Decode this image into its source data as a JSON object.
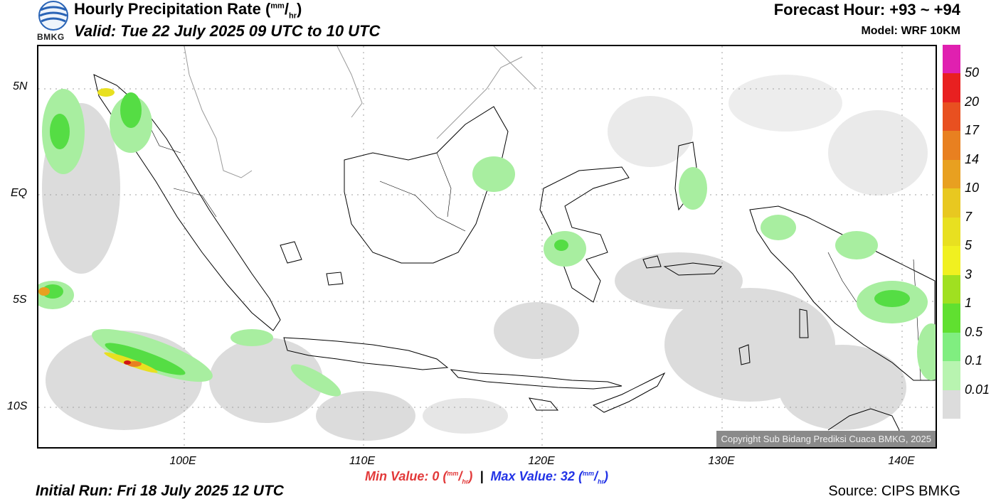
{
  "header": {
    "logo_text": "BMKG",
    "title_main": "Hourly Precipitation Rate (",
    "title_unit_num": "mm",
    "title_unit_sep": "/",
    "title_unit_den": "hr",
    "title_close": ")",
    "valid": "Valid: Tue 22 July 2025 09 UTC to 10 UTC",
    "forecast_hour": "Forecast Hour: +93 ~ +94",
    "model": "Model: WRF 10KM"
  },
  "map": {
    "copyright": "Copyright Sub Bidang Prediksi Cuaca BMKG, 2025",
    "lat_labels": [
      "5N",
      "EQ",
      "5S",
      "10S"
    ],
    "lon_labels": [
      "100E",
      "110E",
      "120E",
      "130E",
      "140E"
    ],
    "colors": {
      "land_outline": "#000000",
      "grid": "#a0a0a0",
      "light_rain": "#dcdcdc",
      "green_light": "#a8eea0",
      "green": "#55dd44",
      "yellow": "#e8e020",
      "orange": "#e88020",
      "red": "#d01515"
    }
  },
  "colorbar": {
    "labels": [
      "50",
      "20",
      "17",
      "14",
      "10",
      "7",
      "5",
      "3",
      "1",
      "0.5",
      "0.1",
      "0.01"
    ],
    "colors": [
      "#e020b0",
      "#e82020",
      "#e85020",
      "#e88020",
      "#e8a020",
      "#e8c820",
      "#e8e020",
      "#f0f020",
      "#a0e020",
      "#60e030",
      "#80ee80",
      "#b8f4b0",
      "#dcdcdc"
    ]
  },
  "footer": {
    "min_label": "Min Value:",
    "min_value": "0",
    "max_label": "Max Value:",
    "max_value": "32",
    "unit_num": "mm",
    "unit_den": "hr",
    "initial_run": "Initial Run: Fri 18 July 2025 12 UTC",
    "source": "Source: CIPS BMKG"
  }
}
